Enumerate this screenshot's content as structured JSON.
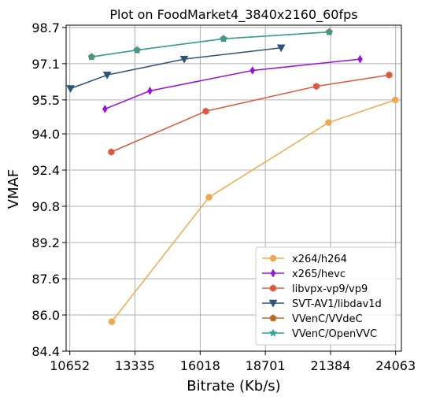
{
  "chart_data": {
    "type": "line",
    "title": "Plot on FoodMarket4_3840x2160_60fps",
    "xlabel": "Bitrate (Kb/s)",
    "ylabel": "VMAF",
    "xlim": [
      10500,
      24300
    ],
    "ylim": [
      84.4,
      98.8
    ],
    "x_ticks": [
      10652,
      13335,
      16018,
      18701,
      21384,
      24063
    ],
    "x_tick_labels": [
      "10652",
      "13335",
      "16018",
      "18701",
      "21384",
      "24063"
    ],
    "y_ticks": [
      84.4,
      86.0,
      87.6,
      89.2,
      90.8,
      92.4,
      94.0,
      95.5,
      97.1,
      98.7
    ],
    "y_tick_labels": [
      "84.4",
      "86.0",
      "87.6",
      "89.2",
      "90.8",
      "92.4",
      "94.0",
      "95.5",
      "97.1",
      "98.7"
    ],
    "grid": true,
    "legend_position": "lower-right",
    "series": [
      {
        "name": "x264/h264",
        "color": "#f0a94a",
        "marker": "circle",
        "points": [
          [
            12380,
            85.7
          ],
          [
            16380,
            91.2
          ],
          [
            21300,
            94.5
          ],
          [
            24050,
            95.5
          ]
        ]
      },
      {
        "name": "x265/hevc",
        "color": "#9b10dc",
        "marker": "thin-diamond",
        "points": [
          [
            12100,
            95.1
          ],
          [
            13950,
            95.9
          ],
          [
            18170,
            96.8
          ],
          [
            22600,
            97.3
          ]
        ]
      },
      {
        "name": "libvpx-vp9/vp9",
        "color": "#e0573c",
        "marker": "hexagon",
        "points": [
          [
            12360,
            93.2
          ],
          [
            16250,
            95.0
          ],
          [
            20800,
            96.1
          ],
          [
            23800,
            96.6
          ]
        ]
      },
      {
        "name": "SVT-AV1/libdav1d",
        "color": "#2a5578",
        "marker": "triangle-down",
        "points": [
          [
            10680,
            96.0
          ],
          [
            12190,
            96.6
          ],
          [
            15360,
            97.3
          ],
          [
            19350,
            97.8
          ]
        ]
      },
      {
        "name": "VVenC/VVdeC",
        "color": "#c06a1f",
        "marker": "pentagon",
        "points": [
          [
            11550,
            97.4
          ],
          [
            13420,
            97.7
          ],
          [
            16980,
            98.2
          ],
          [
            21330,
            98.5
          ]
        ]
      },
      {
        "name": "VVenC/OpenVVC",
        "color": "#2aa39a",
        "marker": "star",
        "points": [
          [
            11550,
            97.4
          ],
          [
            13420,
            97.7
          ],
          [
            16980,
            98.2
          ],
          [
            21330,
            98.5
          ]
        ]
      }
    ]
  }
}
